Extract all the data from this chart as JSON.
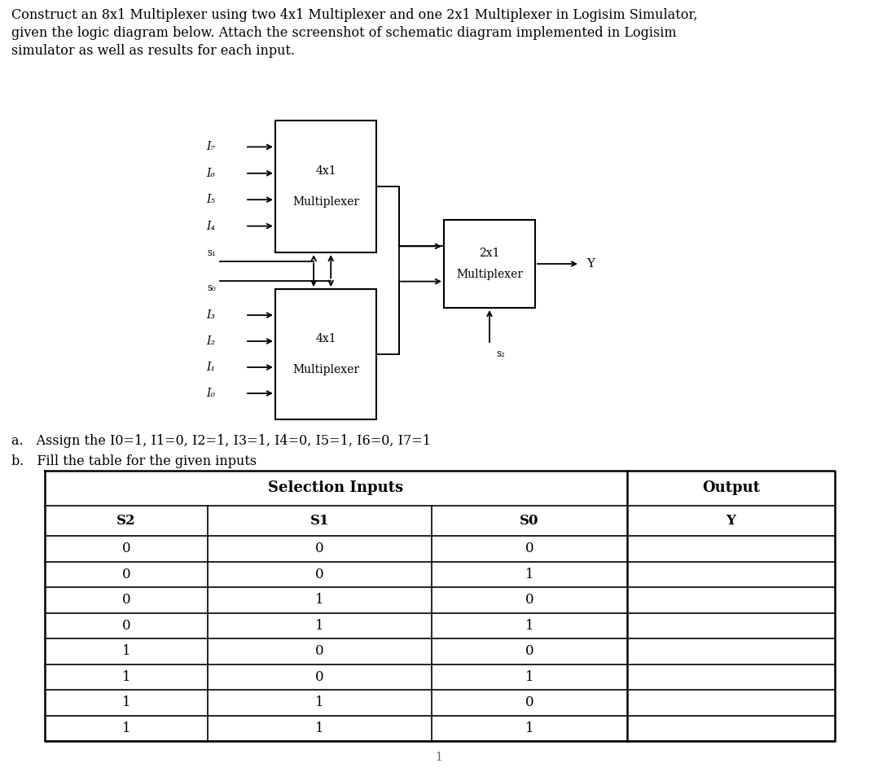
{
  "title_line1": "Construct an 8x1 Multiplexer using two 4x1 Multiplexer and one 2x1 Multiplexer in Logisim Simulator,",
  "title_line2": "given the logic diagram below. Attach the screenshot of schematic diagram implemented in Logisim",
  "title_line3": "simulator as well as results for each input.",
  "point_a": "a. Assign the I0=1, I1=0, I2=1, I3=1, I4=0, I5=1, I6=0, I7=1",
  "point_b": "b. Fill the table for the given inputs",
  "page_num": "1",
  "mux1_label1": "4x1",
  "mux1_label2": "Multiplexer",
  "mux2_label1": "4x1",
  "mux2_label2": "Multiplexer",
  "mux3_label1": "2x1",
  "mux3_label2": "Multiplexer",
  "inputs_top": [
    "I₇",
    "I₆",
    "I₅",
    "I₄"
  ],
  "inputs_bot": [
    "I₃",
    "I₂",
    "I₁",
    "I₀"
  ],
  "output_label": "Y",
  "table_header_group1": "Selection Inputs",
  "table_header_group2": "Output",
  "col_headers": [
    "S2",
    "S1",
    "S0",
    "Y"
  ],
  "table_data": [
    [
      "0",
      "0",
      "0",
      ""
    ],
    [
      "0",
      "0",
      "1",
      ""
    ],
    [
      "0",
      "1",
      "0",
      ""
    ],
    [
      "0",
      "1",
      "1",
      ""
    ],
    [
      "1",
      "0",
      "0",
      ""
    ],
    [
      "1",
      "0",
      "1",
      ""
    ],
    [
      "1",
      "1",
      "0",
      ""
    ],
    [
      "1",
      "1",
      "1",
      ""
    ]
  ],
  "bg_color": "#ffffff",
  "text_color": "#000000"
}
